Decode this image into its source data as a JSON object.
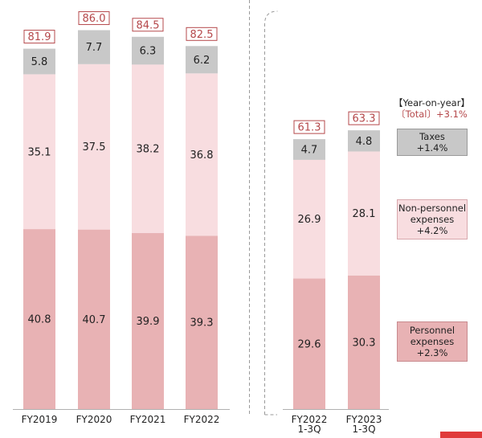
{
  "chart_data": {
    "type": "bar",
    "stacked": true,
    "categories": [
      "FY2019",
      "FY2020",
      "FY2021",
      "FY2022",
      "FY2022\n1-3Q",
      "FY2023\n1-3Q"
    ],
    "series": [
      {
        "name": "Personnel expenses",
        "values": [
          40.8,
          40.7,
          39.9,
          39.3,
          29.6,
          30.3
        ]
      },
      {
        "name": "Non-personnel expenses",
        "values": [
          35.1,
          37.5,
          38.2,
          36.8,
          26.9,
          28.1
        ]
      },
      {
        "name": "Taxes",
        "values": [
          5.8,
          7.7,
          6.3,
          6.2,
          4.7,
          4.8
        ]
      }
    ],
    "totals": [
      81.9,
      86.0,
      84.5,
      82.5,
      61.3,
      63.3
    ],
    "value_labels": [
      [
        "40.8",
        "35.1",
        "5.8"
      ],
      [
        "40.7",
        "37.5",
        "7.7"
      ],
      [
        "39.9",
        "38.2",
        "6.3"
      ],
      [
        "39.3",
        "36.8",
        "6.2"
      ],
      [
        "29.6",
        "26.9",
        "4.7"
      ],
      [
        "30.3",
        "28.1",
        "4.8"
      ]
    ],
    "total_labels": [
      "81.9",
      "86.0",
      "84.5",
      "82.5",
      "61.3",
      "63.3"
    ],
    "colors": {
      "personnel": "#e8b2b4",
      "non_personnel": "#f8dde0",
      "taxes": "#c8c8c8",
      "total_text": "#b5484b",
      "divider": "#9a9a9a"
    },
    "ylim": [
      0,
      86.0
    ],
    "grid": false,
    "legend": {
      "placement": "right",
      "title": "【Year-on-year】",
      "total": "〔Total〕+3.1%",
      "items": [
        {
          "name": "Taxes",
          "change": "+1.4%"
        },
        {
          "name": "Non-personnel expenses",
          "change": "+4.2%"
        },
        {
          "name": "Personnel expenses",
          "change": "+2.3%"
        }
      ]
    }
  }
}
